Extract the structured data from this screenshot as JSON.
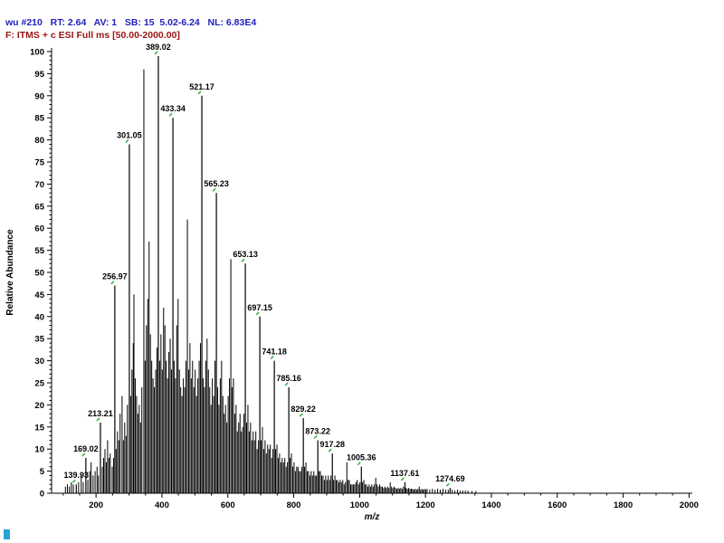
{
  "header": {
    "line1": "wu #210   RT: 2.64   AV: 1   SB: 15  5.02-6.24   NL: 6.83E4",
    "line2": "F: ITMS + c ESI Full ms [50.00-2000.00]",
    "line1_color": "#2121bd",
    "line2_color": "#9b1414"
  },
  "status_marker_color": "#29a3d9",
  "chart_data": {
    "type": "bar",
    "subtype": "mass-spectrum-stick-plot",
    "title": "",
    "xlabel": "m/z",
    "ylabel": "Relative Abundance",
    "xlim": [
      65,
      2010
    ],
    "ylim": [
      0,
      100
    ],
    "x_major_ticks": [
      200,
      400,
      600,
      800,
      1000,
      1200,
      1400,
      1600,
      1800,
      2000
    ],
    "x_minor_step": 50,
    "y_major_step": 5,
    "y_minor_step": 1,
    "grid": false,
    "legend": "none",
    "peak_color": "#000000",
    "label_marker_color": "#3cb44b",
    "labeled_peaks": [
      {
        "mz": 139.93,
        "intensity": 2,
        "label": "139.93"
      },
      {
        "mz": 169.02,
        "intensity": 8,
        "label": "169.02"
      },
      {
        "mz": 213.21,
        "intensity": 16,
        "label": "213.21"
      },
      {
        "mz": 256.97,
        "intensity": 47,
        "label": "256.97"
      },
      {
        "mz": 301.05,
        "intensity": 79,
        "label": "301.05"
      },
      {
        "mz": 389.02,
        "intensity": 99,
        "label": "389.02"
      },
      {
        "mz": 433.34,
        "intensity": 85,
        "label": "433.34"
      },
      {
        "mz": 521.17,
        "intensity": 90,
        "label": "521.17"
      },
      {
        "mz": 565.23,
        "intensity": 68,
        "label": "565.23"
      },
      {
        "mz": 653.13,
        "intensity": 52,
        "label": "653.13"
      },
      {
        "mz": 697.15,
        "intensity": 40,
        "label": "697.15"
      },
      {
        "mz": 741.18,
        "intensity": 30,
        "label": "741.18"
      },
      {
        "mz": 785.16,
        "intensity": 24,
        "label": "785.16"
      },
      {
        "mz": 829.22,
        "intensity": 17,
        "label": "829.22"
      },
      {
        "mz": 873.22,
        "intensity": 12,
        "label": "873.22"
      },
      {
        "mz": 917.28,
        "intensity": 9,
        "label": "917.28"
      },
      {
        "mz": 1005.36,
        "intensity": 6,
        "label": "1005.36"
      },
      {
        "mz": 1137.61,
        "intensity": 2.5,
        "label": "1137.61"
      },
      {
        "mz": 1274.69,
        "intensity": 1.2,
        "label": "1274.69"
      }
    ],
    "unlabeled_peaks": [
      [
        107,
        1.5
      ],
      [
        113,
        2
      ],
      [
        119,
        1.5
      ],
      [
        125,
        2.5
      ],
      [
        131,
        2
      ],
      [
        147,
        2.5
      ],
      [
        155,
        4
      ],
      [
        161,
        2.5
      ],
      [
        175,
        3
      ],
      [
        181,
        5
      ],
      [
        185,
        7
      ],
      [
        191,
        4
      ],
      [
        197,
        5
      ],
      [
        203,
        6
      ],
      [
        207,
        4
      ],
      [
        219,
        6
      ],
      [
        223,
        8
      ],
      [
        227,
        10
      ],
      [
        231,
        7
      ],
      [
        235,
        12
      ],
      [
        239,
        8
      ],
      [
        243,
        9
      ],
      [
        249,
        6
      ],
      [
        253,
        8
      ],
      [
        261,
        10
      ],
      [
        265,
        14
      ],
      [
        269,
        12
      ],
      [
        273,
        18
      ],
      [
        279,
        22
      ],
      [
        283,
        12
      ],
      [
        287,
        16
      ],
      [
        291,
        13
      ],
      [
        295,
        20
      ],
      [
        305,
        22
      ],
      [
        309,
        28
      ],
      [
        313,
        34
      ],
      [
        315,
        45
      ],
      [
        319,
        26
      ],
      [
        323,
        22
      ],
      [
        327,
        18
      ],
      [
        331,
        20
      ],
      [
        335,
        16
      ],
      [
        339,
        24
      ],
      [
        345.1,
        96
      ],
      [
        349,
        30
      ],
      [
        353,
        38
      ],
      [
        357,
        44
      ],
      [
        361,
        57
      ],
      [
        365,
        36
      ],
      [
        369,
        30
      ],
      [
        373,
        26
      ],
      [
        377,
        24
      ],
      [
        381,
        28
      ],
      [
        385,
        33
      ],
      [
        393,
        30
      ],
      [
        397,
        36
      ],
      [
        401,
        28
      ],
      [
        405,
        42
      ],
      [
        409,
        38
      ],
      [
        413,
        30
      ],
      [
        417,
        26
      ],
      [
        421,
        32
      ],
      [
        425,
        35
      ],
      [
        429,
        28
      ],
      [
        437,
        30
      ],
      [
        441,
        26
      ],
      [
        445,
        38
      ],
      [
        449,
        44
      ],
      [
        453,
        28
      ],
      [
        457,
        24
      ],
      [
        461,
        22
      ],
      [
        465,
        26
      ],
      [
        469,
        24
      ],
      [
        473,
        30
      ],
      [
        477.2,
        62
      ],
      [
        481,
        28
      ],
      [
        485,
        34
      ],
      [
        489,
        26
      ],
      [
        493,
        30
      ],
      [
        497,
        24
      ],
      [
        501,
        28
      ],
      [
        505,
        22
      ],
      [
        509,
        26
      ],
      [
        513,
        30
      ],
      [
        517,
        34
      ],
      [
        525,
        26
      ],
      [
        529,
        24
      ],
      [
        533,
        30
      ],
      [
        537,
        35
      ],
      [
        541,
        28
      ],
      [
        545,
        24
      ],
      [
        549,
        20
      ],
      [
        553,
        26
      ],
      [
        557,
        22
      ],
      [
        561,
        30
      ],
      [
        569,
        24
      ],
      [
        573,
        20
      ],
      [
        577,
        26
      ],
      [
        581,
        30
      ],
      [
        585,
        22
      ],
      [
        589,
        18
      ],
      [
        593,
        20
      ],
      [
        597,
        16
      ],
      [
        601,
        22
      ],
      [
        605,
        26
      ],
      [
        609.2,
        53
      ],
      [
        613,
        24
      ],
      [
        617,
        26
      ],
      [
        621,
        18
      ],
      [
        625,
        20
      ],
      [
        629,
        14
      ],
      [
        633,
        16
      ],
      [
        637,
        18
      ],
      [
        641,
        14
      ],
      [
        645,
        15
      ],
      [
        649,
        18
      ],
      [
        657,
        16
      ],
      [
        661,
        20
      ],
      [
        665,
        14
      ],
      [
        669,
        16
      ],
      [
        673,
        12
      ],
      [
        677,
        14
      ],
      [
        681,
        12
      ],
      [
        685,
        14
      ],
      [
        689,
        10
      ],
      [
        693,
        12
      ],
      [
        701,
        12
      ],
      [
        705,
        15
      ],
      [
        709,
        10
      ],
      [
        713,
        12
      ],
      [
        717,
        9
      ],
      [
        721,
        11
      ],
      [
        725,
        10
      ],
      [
        729,
        11
      ],
      [
        733,
        8
      ],
      [
        737,
        10
      ],
      [
        745,
        10
      ],
      [
        749,
        11
      ],
      [
        753,
        8
      ],
      [
        757,
        9
      ],
      [
        761,
        7
      ],
      [
        765,
        8
      ],
      [
        769,
        7
      ],
      [
        773,
        8
      ],
      [
        777,
        6
      ],
      [
        781,
        7
      ],
      [
        789,
        8
      ],
      [
        793,
        9
      ],
      [
        797,
        6
      ],
      [
        801,
        7
      ],
      [
        805,
        5
      ],
      [
        809,
        6
      ],
      [
        813,
        6
      ],
      [
        817,
        5
      ],
      [
        821,
        5
      ],
      [
        825,
        6
      ],
      [
        833,
        6
      ],
      [
        837,
        7
      ],
      [
        841,
        5
      ],
      [
        845,
        5
      ],
      [
        849,
        4
      ],
      [
        853,
        5
      ],
      [
        857,
        4
      ],
      [
        861,
        5
      ],
      [
        865,
        4
      ],
      [
        869,
        4
      ],
      [
        877,
        5
      ],
      [
        881,
        5
      ],
      [
        885,
        4
      ],
      [
        889,
        4
      ],
      [
        893,
        3
      ],
      [
        897,
        4
      ],
      [
        901,
        3
      ],
      [
        905,
        4
      ],
      [
        909,
        3
      ],
      [
        913,
        4
      ],
      [
        921,
        3
      ],
      [
        925,
        4
      ],
      [
        929,
        3
      ],
      [
        933,
        3
      ],
      [
        937,
        2.5
      ],
      [
        941,
        3
      ],
      [
        945,
        2.5
      ],
      [
        949,
        3
      ],
      [
        953,
        2
      ],
      [
        957,
        2.5
      ],
      [
        961.3,
        7
      ],
      [
        965,
        3
      ],
      [
        969,
        3
      ],
      [
        973,
        2
      ],
      [
        977,
        2
      ],
      [
        981,
        2
      ],
      [
        985,
        2
      ],
      [
        989,
        2.5
      ],
      [
        993,
        3
      ],
      [
        997,
        2
      ],
      [
        1001,
        2.5
      ],
      [
        1009,
        2.5
      ],
      [
        1013,
        3
      ],
      [
        1017,
        2
      ],
      [
        1021,
        2
      ],
      [
        1025,
        1.5
      ],
      [
        1029,
        2
      ],
      [
        1033,
        1.5
      ],
      [
        1037,
        2
      ],
      [
        1041,
        1.5
      ],
      [
        1045,
        2
      ],
      [
        1049,
        3.5
      ],
      [
        1053,
        2
      ],
      [
        1057,
        1.5
      ],
      [
        1061,
        2
      ],
      [
        1065,
        1.5
      ],
      [
        1069,
        1.5
      ],
      [
        1073,
        1.2
      ],
      [
        1077,
        1.5
      ],
      [
        1081,
        1.2
      ],
      [
        1085,
        1.5
      ],
      [
        1089,
        1.2
      ],
      [
        1093,
        2.5
      ],
      [
        1097,
        1.5
      ],
      [
        1101,
        1.2
      ],
      [
        1105,
        1.5
      ],
      [
        1109,
        1.2
      ],
      [
        1113,
        1
      ],
      [
        1117,
        1.2
      ],
      [
        1121,
        1
      ],
      [
        1125,
        1.2
      ],
      [
        1129,
        1
      ],
      [
        1133,
        1.5
      ],
      [
        1141,
        1.2
      ],
      [
        1145,
        1
      ],
      [
        1149,
        1.2
      ],
      [
        1153,
        1
      ],
      [
        1157,
        1
      ],
      [
        1161,
        1
      ],
      [
        1165,
        0.8
      ],
      [
        1169,
        1
      ],
      [
        1173,
        0.8
      ],
      [
        1177,
        1
      ],
      [
        1181,
        1.5
      ],
      [
        1185,
        0.8
      ],
      [
        1189,
        1
      ],
      [
        1193,
        0.8
      ],
      [
        1197,
        1
      ],
      [
        1201,
        0.8
      ],
      [
        1205,
        1
      ],
      [
        1213,
        0.8
      ],
      [
        1221,
        1
      ],
      [
        1229,
        0.8
      ],
      [
        1237,
        1
      ],
      [
        1245,
        0.8
      ],
      [
        1253,
        1
      ],
      [
        1261,
        0.8
      ],
      [
        1269,
        0.8
      ],
      [
        1281,
        0.8
      ],
      [
        1289,
        0.6
      ],
      [
        1297,
        0.8
      ],
      [
        1305,
        0.6
      ],
      [
        1313,
        0.6
      ],
      [
        1321,
        0.6
      ],
      [
        1329,
        0.6
      ],
      [
        1341,
        0.5
      ],
      [
        1353,
        0.5
      ]
    ]
  }
}
